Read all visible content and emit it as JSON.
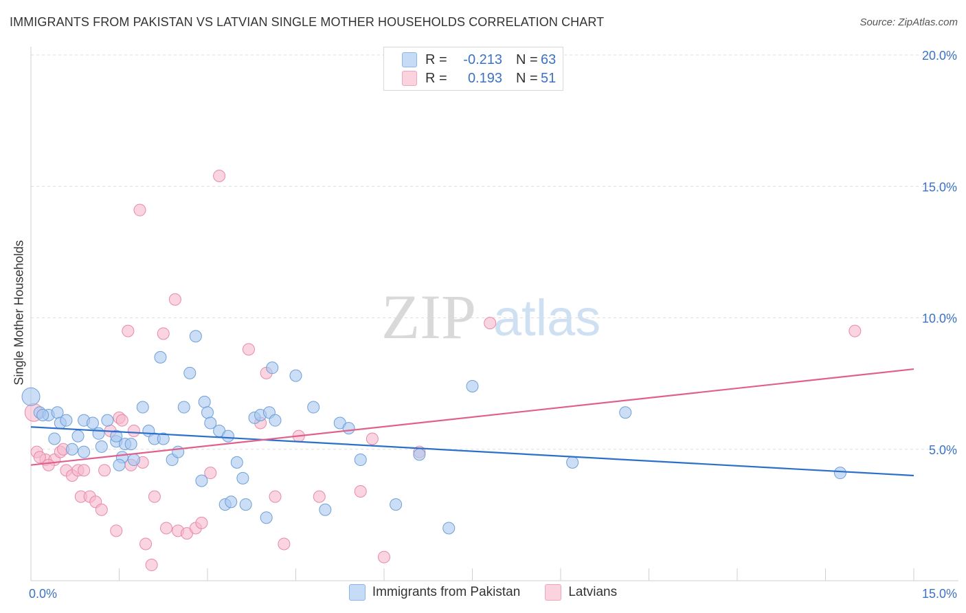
{
  "title": "IMMIGRANTS FROM PAKISTAN VS LATVIAN SINGLE MOTHER HOUSEHOLDS CORRELATION CHART",
  "source": "Source: ZipAtlas.com",
  "watermark": {
    "zip": "ZIP",
    "atlas": "atlas"
  },
  "legend": {
    "rows": [
      {
        "r_label": "R =",
        "r_value": "-0.213",
        "n_label": "N =",
        "n_value": "63",
        "color": "#a8c8f0"
      },
      {
        "r_label": "R =",
        "r_value": "0.193",
        "n_label": "N =",
        "n_value": "51",
        "color": "#f6b8cb"
      }
    ]
  },
  "bottom_legend": {
    "series1": "Immigrants from Pakistan",
    "series2": "Latvians"
  },
  "colors": {
    "blue_fill": "#a8c8f0",
    "blue_stroke": "#6e9fd8",
    "blue_line": "#2a6fcb",
    "pink_fill": "#f6b8cb",
    "pink_stroke": "#e88aa6",
    "pink_line": "#e0608c",
    "axis_text": "#3a72c4"
  },
  "chart_data": {
    "type": "scatter",
    "title": "IMMIGRANTS FROM PAKISTAN VS LATVIAN SINGLE MOTHER HOUSEHOLDS CORRELATION CHART",
    "xlabel": "",
    "ylabel": "Single Mother Households",
    "xlim": [
      0,
      15
    ],
    "ylim": [
      0,
      20
    ],
    "x_tick_labels": [
      "0.0%",
      "15.0%"
    ],
    "y_tick_labels": [
      "5.0%",
      "10.0%",
      "15.0%",
      "20.0%"
    ],
    "y_ticks": [
      5,
      10,
      15,
      20
    ],
    "grid": "horizontal dashed",
    "legend_position": "top-center",
    "series": [
      {
        "name": "Immigrants from Pakistan",
        "r": -0.213,
        "n": 63,
        "trend": {
          "x": [
            0,
            15
          ],
          "y": [
            5.85,
            4.0
          ]
        },
        "points": [
          [
            0.0,
            7.0
          ],
          [
            0.15,
            6.4
          ],
          [
            0.3,
            6.3
          ],
          [
            0.45,
            6.4
          ],
          [
            0.5,
            6.0
          ],
          [
            0.6,
            6.1
          ],
          [
            0.4,
            5.4
          ],
          [
            0.8,
            5.5
          ],
          [
            0.9,
            6.1
          ],
          [
            1.05,
            6.0
          ],
          [
            1.3,
            6.1
          ],
          [
            1.15,
            5.6
          ],
          [
            0.7,
            5.0
          ],
          [
            0.9,
            4.9
          ],
          [
            1.2,
            5.1
          ],
          [
            1.45,
            5.3
          ],
          [
            1.45,
            5.5
          ],
          [
            1.6,
            5.2
          ],
          [
            1.7,
            5.2
          ],
          [
            1.55,
            4.7
          ],
          [
            1.75,
            4.6
          ],
          [
            1.5,
            4.4
          ],
          [
            1.9,
            6.6
          ],
          [
            2.0,
            5.7
          ],
          [
            2.1,
            5.4
          ],
          [
            2.25,
            5.4
          ],
          [
            2.4,
            4.6
          ],
          [
            2.5,
            4.9
          ],
          [
            2.2,
            8.5
          ],
          [
            2.7,
            7.9
          ],
          [
            2.6,
            6.6
          ],
          [
            2.8,
            9.3
          ],
          [
            2.95,
            6.8
          ],
          [
            3.0,
            6.4
          ],
          [
            3.05,
            6.0
          ],
          [
            3.2,
            5.7
          ],
          [
            2.9,
            3.8
          ],
          [
            3.35,
            5.5
          ],
          [
            3.3,
            2.9
          ],
          [
            3.4,
            3.0
          ],
          [
            3.5,
            4.5
          ],
          [
            3.6,
            3.9
          ],
          [
            3.65,
            2.9
          ],
          [
            3.8,
            6.2
          ],
          [
            3.9,
            6.3
          ],
          [
            4.0,
            2.4
          ],
          [
            4.1,
            8.1
          ],
          [
            4.05,
            6.4
          ],
          [
            4.15,
            6.1
          ],
          [
            4.5,
            7.8
          ],
          [
            4.8,
            6.6
          ],
          [
            5.0,
            2.7
          ],
          [
            5.25,
            6.0
          ],
          [
            5.4,
            5.8
          ],
          [
            5.6,
            4.6
          ],
          [
            6.2,
            2.9
          ],
          [
            6.6,
            4.8
          ],
          [
            7.1,
            2.0
          ],
          [
            7.5,
            7.4
          ],
          [
            9.2,
            4.5
          ],
          [
            10.1,
            6.4
          ],
          [
            13.75,
            4.1
          ],
          [
            0.2,
            6.3
          ]
        ]
      },
      {
        "name": "Latvians",
        "r": 0.193,
        "n": 51,
        "trend": {
          "x": [
            0,
            15
          ],
          "y": [
            4.4,
            8.05
          ]
        },
        "points": [
          [
            0.05,
            6.4
          ],
          [
            0.1,
            4.9
          ],
          [
            0.25,
            4.6
          ],
          [
            0.4,
            4.6
          ],
          [
            0.5,
            4.9
          ],
          [
            0.55,
            5.0
          ],
          [
            0.6,
            4.2
          ],
          [
            0.7,
            4.0
          ],
          [
            0.8,
            4.2
          ],
          [
            0.9,
            4.2
          ],
          [
            0.85,
            3.2
          ],
          [
            1.0,
            3.2
          ],
          [
            1.1,
            3.0
          ],
          [
            1.25,
            4.2
          ],
          [
            1.35,
            5.7
          ],
          [
            1.5,
            6.2
          ],
          [
            1.55,
            6.1
          ],
          [
            1.75,
            5.7
          ],
          [
            1.7,
            4.4
          ],
          [
            1.9,
            4.5
          ],
          [
            1.65,
            9.5
          ],
          [
            1.85,
            14.1
          ],
          [
            2.25,
            9.4
          ],
          [
            2.45,
            10.7
          ],
          [
            2.1,
            3.2
          ],
          [
            2.3,
            2.0
          ],
          [
            2.5,
            1.9
          ],
          [
            2.65,
            1.8
          ],
          [
            2.8,
            2.0
          ],
          [
            2.9,
            2.2
          ],
          [
            3.05,
            4.1
          ],
          [
            3.2,
            15.4
          ],
          [
            3.7,
            8.8
          ],
          [
            3.9,
            6.0
          ],
          [
            4.0,
            7.9
          ],
          [
            4.15,
            3.2
          ],
          [
            4.3,
            1.4
          ],
          [
            4.55,
            5.5
          ],
          [
            4.9,
            3.2
          ],
          [
            5.6,
            3.4
          ],
          [
            5.8,
            5.4
          ],
          [
            6.0,
            0.9
          ],
          [
            6.6,
            4.9
          ],
          [
            7.8,
            9.8
          ],
          [
            14.0,
            9.5
          ],
          [
            0.15,
            4.7
          ],
          [
            0.3,
            4.4
          ],
          [
            1.2,
            2.7
          ],
          [
            1.45,
            1.9
          ],
          [
            1.95,
            1.4
          ],
          [
            2.05,
            0.6
          ]
        ]
      }
    ]
  }
}
